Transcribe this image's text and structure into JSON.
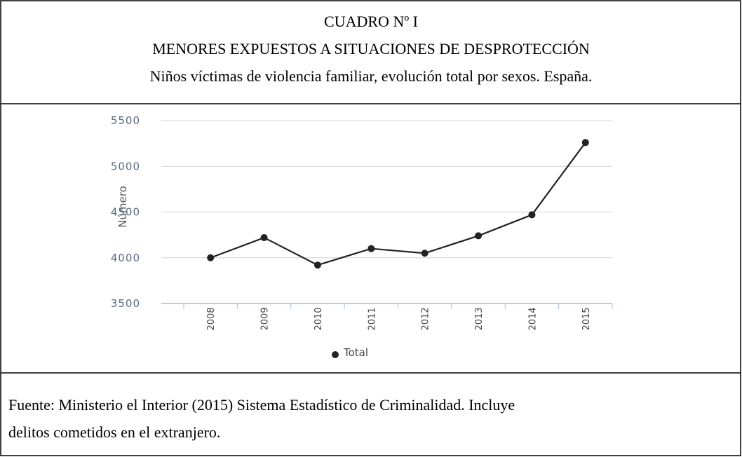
{
  "header": {
    "lines": [
      "CUADRO Nº I",
      "MENORES EXPUESTOS A SITUACIONES DE DESPROTECCIÓN",
      "Niños víctimas de violencia familiar, evolución total por sexos. España."
    ]
  },
  "chart_data": {
    "type": "line",
    "ylabel": "Número",
    "categories": [
      "2008",
      "2009",
      "2010",
      "2011",
      "2012",
      "2013",
      "2014",
      "2015"
    ],
    "series": [
      {
        "name": "Total",
        "color": "#222222",
        "values": [
          4000,
          4220,
          3920,
          4100,
          4050,
          4240,
          4470,
          5260
        ]
      }
    ],
    "ylim": [
      3500,
      5500
    ],
    "yticks": [
      3500,
      4000,
      4500,
      5000,
      5500
    ],
    "grid": true,
    "legend": "bottom"
  },
  "footer": {
    "lines": [
      "Fuente: Ministerio el Interior (2015) Sistema Estadístico de Criminalidad. Incluye",
      "delitos cometidos en el extranjero."
    ]
  }
}
